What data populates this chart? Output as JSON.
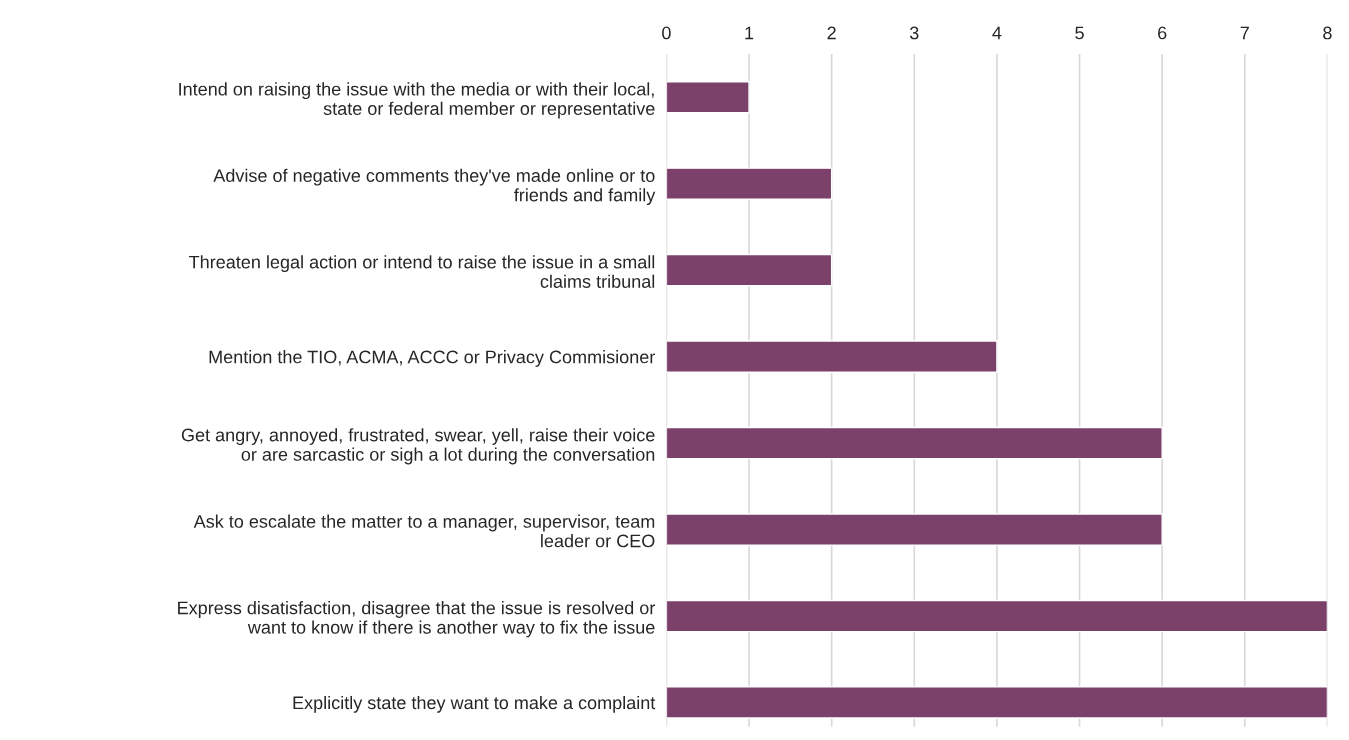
{
  "chart_data": {
    "type": "bar",
    "orientation": "horizontal",
    "categories": [
      "Intend on raising the issue with the media or with their local,\nstate or federal member or representative",
      "Advise of negative comments they've made online or to\nfriends and family",
      "Threaten legal action or intend to raise the issue in a small\nclaims tribunal",
      "Mention the TIO, ACMA, ACCC or Privacy Commisioner",
      "Get angry, annoyed, frustrated, swear, yell, raise their voice\nor are sarcastic or sigh a lot during the conversation",
      "Ask to escalate the matter to a manager, supervisor, team\nleader or CEO",
      "Express disatisfaction, disagree that the issue is resolved or\nwant to know if there is another way to fix the issue",
      "Explicitly state they want to make a complaint"
    ],
    "values": [
      1,
      2,
      2,
      4,
      6,
      6,
      8,
      8
    ],
    "color": "#7b416b",
    "xlim": [
      0,
      8
    ],
    "xticks": [
      0,
      1,
      2,
      3,
      4,
      5,
      6,
      7,
      8
    ],
    "grid": "x"
  }
}
